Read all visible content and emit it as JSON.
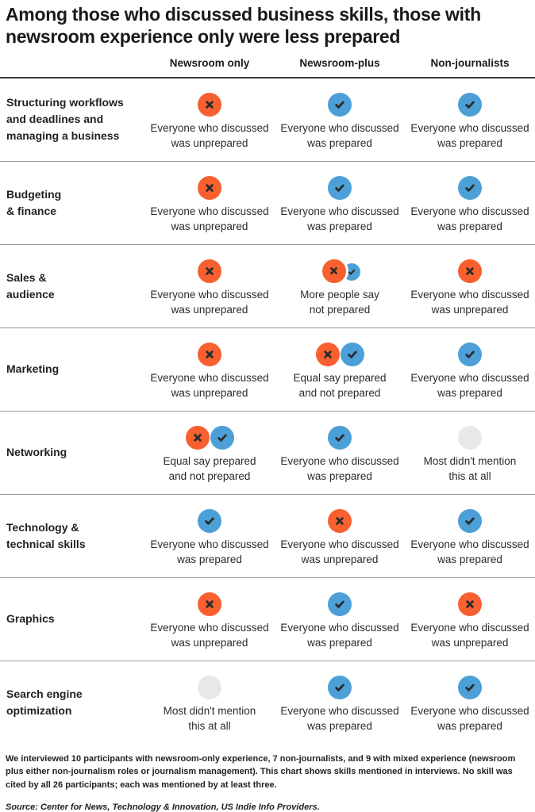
{
  "title": "Among those who discussed business skills, those with newsroom experience only were less prepared",
  "columns": [
    "Newsroom only",
    "Newsroom-plus",
    "Non-journalists"
  ],
  "colors": {
    "unprepared_orange": "#f9602f",
    "prepared_blue": "#4d9fd8",
    "not_mentioned_gray": "#e8e8ea",
    "mark": "#2b2b2b"
  },
  "captions": {
    "unprepared": "Everyone who discussed\nwas unprepared",
    "prepared": "Everyone who discussed\nwas prepared",
    "more_unprepared": "More people say\nnot prepared",
    "equal": "Equal say prepared\nand not prepared",
    "not_mentioned": "Most didn't mention\nthis at all"
  },
  "rows": [
    {
      "skill": "Structuring workflows\nand deadlines and\nmanaging a business",
      "cells": [
        {
          "icon": "unprepared",
          "caption_key": "unprepared"
        },
        {
          "icon": "prepared",
          "caption_key": "prepared"
        },
        {
          "icon": "prepared",
          "caption_key": "prepared"
        }
      ]
    },
    {
      "skill": "Budgeting\n& finance",
      "cells": [
        {
          "icon": "unprepared",
          "caption_key": "unprepared"
        },
        {
          "icon": "prepared",
          "caption_key": "prepared"
        },
        {
          "icon": "prepared",
          "caption_key": "prepared"
        }
      ]
    },
    {
      "skill": "Sales &\naudience",
      "cells": [
        {
          "icon": "unprepared",
          "caption_key": "unprepared"
        },
        {
          "icon": "more_unprepared",
          "caption_key": "more_unprepared"
        },
        {
          "icon": "unprepared",
          "caption_key": "unprepared"
        }
      ]
    },
    {
      "skill": "Marketing",
      "cells": [
        {
          "icon": "unprepared",
          "caption_key": "unprepared"
        },
        {
          "icon": "equal",
          "caption_key": "equal"
        },
        {
          "icon": "prepared",
          "caption_key": "prepared"
        }
      ]
    },
    {
      "skill": "Networking",
      "cells": [
        {
          "icon": "equal",
          "caption_key": "equal"
        },
        {
          "icon": "prepared",
          "caption_key": "prepared"
        },
        {
          "icon": "not_mentioned",
          "caption_key": "not_mentioned"
        }
      ]
    },
    {
      "skill": "Technology &\ntechnical skills",
      "cells": [
        {
          "icon": "prepared",
          "caption_key": "prepared"
        },
        {
          "icon": "unprepared",
          "caption_key": "unprepared"
        },
        {
          "icon": "prepared",
          "caption_key": "prepared"
        }
      ]
    },
    {
      "skill": "Graphics",
      "cells": [
        {
          "icon": "unprepared",
          "caption_key": "unprepared"
        },
        {
          "icon": "prepared",
          "caption_key": "prepared"
        },
        {
          "icon": "unprepared",
          "caption_key": "unprepared"
        }
      ]
    },
    {
      "skill": "Search engine\noptimization",
      "cells": [
        {
          "icon": "not_mentioned",
          "caption_key": "not_mentioned"
        },
        {
          "icon": "prepared",
          "caption_key": "prepared"
        },
        {
          "icon": "prepared",
          "caption_key": "prepared"
        }
      ]
    }
  ],
  "footnote": "We interviewed 10 participants with newsroom-only experience, 7 non-journalists, and 9 with mixed experience (newsroom plus either non-journalism roles or journalism management). This chart shows skills mentioned in interviews. No skill was cited by all 26 participants; each was mentioned by at least three.",
  "source": "Source: Center for News, Technology & Innovation, US Indie Info Providers.",
  "chart_data": {
    "type": "table",
    "title": "Among those who discussed business skills, those with newsroom experience only were less prepared",
    "columns": [
      "Newsroom only",
      "Newsroom-plus",
      "Non-journalists"
    ],
    "row_categories": [
      "Structuring workflows and deadlines and managing a business",
      "Budgeting & finance",
      "Sales & audience",
      "Marketing",
      "Networking",
      "Technology & technical skills",
      "Graphics",
      "Search engine optimization"
    ],
    "values": [
      [
        "unprepared",
        "prepared",
        "prepared"
      ],
      [
        "unprepared",
        "prepared",
        "prepared"
      ],
      [
        "unprepared",
        "more_say_not_prepared",
        "unprepared"
      ],
      [
        "unprepared",
        "equal_prepared_and_not",
        "prepared"
      ],
      [
        "equal_prepared_and_not",
        "prepared",
        "not_mentioned"
      ],
      [
        "prepared",
        "unprepared",
        "prepared"
      ],
      [
        "unprepared",
        "prepared",
        "unprepared"
      ],
      [
        "not_mentioned",
        "prepared",
        "prepared"
      ]
    ],
    "legend": {
      "prepared": "blue circle with check — everyone who discussed was prepared",
      "unprepared": "orange circle with x — everyone who discussed was unprepared",
      "more_say_not_prepared": "large orange x over small blue check — more people say not prepared",
      "equal_prepared_and_not": "orange x and blue check side by side — equal say prepared and not prepared",
      "not_mentioned": "gray empty circle — most didn't mention this at all"
    }
  }
}
